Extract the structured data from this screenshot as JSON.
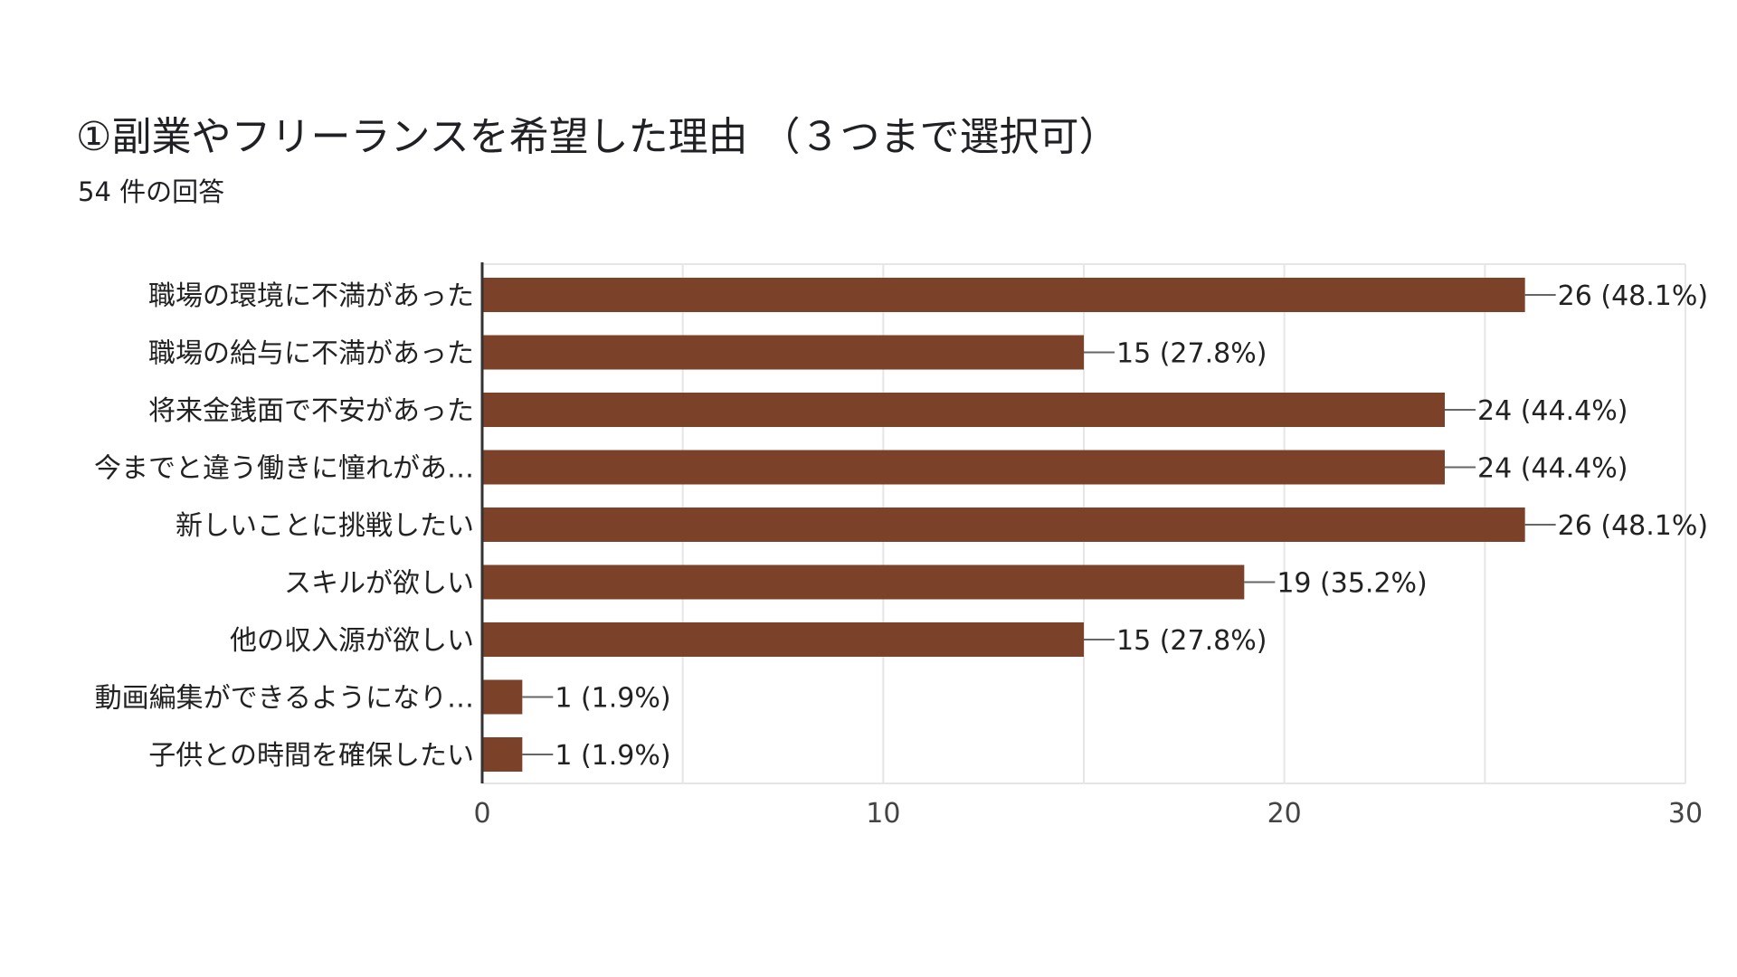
{
  "title": "①副業やフリーランスを希望した理由 （３つまで選択可）",
  "subtitle": "54 件の回答",
  "colors": {
    "bar": "#7b4129",
    "grid": "#e6e6e6",
    "axis": "#333333",
    "leader": "#666666"
  },
  "chart_data": {
    "type": "bar",
    "orientation": "horizontal",
    "title": "①副業やフリーランスを希望した理由 （３つまで選択可）",
    "subtitle": "54 件の回答",
    "categories": [
      "職場の環境に不満があった",
      "職場の給与に不満があった",
      "将来金銭面で不安があった",
      "今までと違う働きに憧れがあ…",
      "新しいことに挑戦したい",
      "スキルが欲しい",
      "他の収入源が欲しい",
      "動画編集ができるようになり…",
      "子供との時間を確保したい"
    ],
    "values": [
      26,
      15,
      24,
      24,
      26,
      19,
      15,
      1,
      1
    ],
    "value_labels": [
      "26 (48.1%)",
      "15 (27.8%)",
      "24 (44.4%)",
      "24 (44.4%)",
      "26 (48.1%)",
      "19 (35.2%)",
      "15 (27.8%)",
      "1 (1.9%)",
      "1 (1.9%)"
    ],
    "xlim": [
      0,
      30
    ],
    "xticks": [
      0,
      10,
      20,
      30
    ],
    "minor_gridlines": [
      5,
      15,
      25
    ],
    "grid": true,
    "legend": "none"
  }
}
